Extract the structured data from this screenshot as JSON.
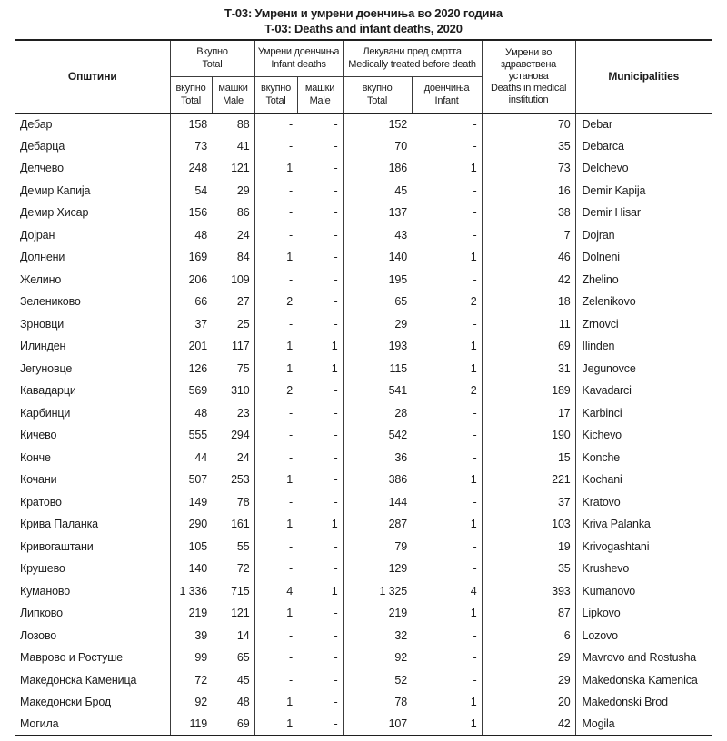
{
  "page": {
    "title_mk": "Т-03: Умрени и умрени доенчиња во 2020 година",
    "title_en": "T-03: Deaths and infant deaths, 2020"
  },
  "colors": {
    "text": "#1c1c1c",
    "rule_thin": "#3c3c3c",
    "rule_heavy": "#1f1f1f",
    "background": "#ffffff"
  },
  "table": {
    "header": {
      "municipalities_mk": "Општини",
      "municipalities_en": "Municipalities",
      "group_total_mk": "Вкупно",
      "group_total_en": "Total",
      "group_infant_mk": "Умрени доенчиња",
      "group_infant_en": "Infant deaths",
      "group_treated_mk": "Лекувани пред смртта",
      "group_treated_en": "Medically treated before death",
      "institution_lines": "Умрени во\nздравствена\nустанова\nDeaths in medical\ninstitution",
      "sub": [
        {
          "mk": "вкупно",
          "en": "Total"
        },
        {
          "mk": "машки",
          "en": "Male"
        },
        {
          "mk": "вкупно",
          "en": "Total"
        },
        {
          "mk": "машки",
          "en": "Male"
        },
        {
          "mk": "вкупно",
          "en": "Total"
        },
        {
          "mk": "доенчиња",
          "en": "Infant"
        }
      ]
    },
    "rows": [
      {
        "mk": "Дебар",
        "values": [
          "158",
          "88",
          "-",
          "-",
          "152",
          "-",
          "70"
        ],
        "en": "Debar"
      },
      {
        "mk": "Дебарца",
        "values": [
          "73",
          "41",
          "-",
          "-",
          "70",
          "-",
          "35"
        ],
        "en": "Debarca"
      },
      {
        "mk": "Делчево",
        "values": [
          "248",
          "121",
          "1",
          "-",
          "186",
          "1",
          "73"
        ],
        "en": "Delchevo"
      },
      {
        "mk": "Демир Капија",
        "values": [
          "54",
          "29",
          "-",
          "-",
          "45",
          "-",
          "16"
        ],
        "en": "Demir Kapija"
      },
      {
        "mk": "Демир Хисар",
        "values": [
          "156",
          "86",
          "-",
          "-",
          "137",
          "-",
          "38"
        ],
        "en": "Demir Hisar"
      },
      {
        "mk": "Дојран",
        "values": [
          "48",
          "24",
          "-",
          "-",
          "43",
          "-",
          "7"
        ],
        "en": "Dojran"
      },
      {
        "mk": "Долнени",
        "values": [
          "169",
          "84",
          "1",
          "-",
          "140",
          "1",
          "46"
        ],
        "en": "Dolneni"
      },
      {
        "mk": "Желино",
        "values": [
          "206",
          "109",
          "-",
          "-",
          "195",
          "-",
          "42"
        ],
        "en": "Zhelino"
      },
      {
        "mk": "Зелениково",
        "values": [
          "66",
          "27",
          "2",
          "-",
          "65",
          "2",
          "18"
        ],
        "en": "Zelenikovo"
      },
      {
        "mk": "Зрновци",
        "values": [
          "37",
          "25",
          "-",
          "-",
          "29",
          "-",
          "11"
        ],
        "en": "Zrnovci"
      },
      {
        "mk": "Илинден",
        "values": [
          "201",
          "117",
          "1",
          "1",
          "193",
          "1",
          "69"
        ],
        "en": "Ilinden"
      },
      {
        "mk": "Јегуновце",
        "values": [
          "126",
          "75",
          "1",
          "1",
          "115",
          "1",
          "31"
        ],
        "en": "Jegunovce"
      },
      {
        "mk": "Кавадарци",
        "values": [
          "569",
          "310",
          "2",
          "-",
          "541",
          "2",
          "189"
        ],
        "en": "Kavadarci"
      },
      {
        "mk": "Карбинци",
        "values": [
          "48",
          "23",
          "-",
          "-",
          "28",
          "-",
          "17"
        ],
        "en": "Karbinci"
      },
      {
        "mk": "Кичево",
        "values": [
          "555",
          "294",
          "-",
          "-",
          "542",
          "-",
          "190"
        ],
        "en": "Kichevo"
      },
      {
        "mk": "Конче",
        "values": [
          "44",
          "24",
          "-",
          "-",
          "36",
          "-",
          "15"
        ],
        "en": "Konche"
      },
      {
        "mk": "Кочани",
        "values": [
          "507",
          "253",
          "1",
          "-",
          "386",
          "1",
          "221"
        ],
        "en": "Kochani"
      },
      {
        "mk": "Кратово",
        "values": [
          "149",
          "78",
          "-",
          "-",
          "144",
          "-",
          "37"
        ],
        "en": "Kratovo"
      },
      {
        "mk": "Крива Паланка",
        "values": [
          "290",
          "161",
          "1",
          "1",
          "287",
          "1",
          "103"
        ],
        "en": "Kriva Palanka"
      },
      {
        "mk": "Кривогаштани",
        "values": [
          "105",
          "55",
          "-",
          "-",
          "79",
          "-",
          "19"
        ],
        "en": "Krivogashtani"
      },
      {
        "mk": "Крушево",
        "values": [
          "140",
          "72",
          "-",
          "-",
          "129",
          "-",
          "35"
        ],
        "en": "Krushevo"
      },
      {
        "mk": "Куманово",
        "values": [
          "1 336",
          "715",
          "4",
          "1",
          "1 325",
          "4",
          "393"
        ],
        "en": "Kumanovo"
      },
      {
        "mk": "Липково",
        "values": [
          "219",
          "121",
          "1",
          "-",
          "219",
          "1",
          "87"
        ],
        "en": "Lipkovo"
      },
      {
        "mk": "Лозово",
        "values": [
          "39",
          "14",
          "-",
          "-",
          "32",
          "-",
          "6"
        ],
        "en": "Lozovo"
      },
      {
        "mk": "Маврово и Ростуше",
        "values": [
          "99",
          "65",
          "-",
          "-",
          "92",
          "-",
          "29"
        ],
        "en": "Mavrovo and Rostusha"
      },
      {
        "mk": "Македонска Каменица",
        "values": [
          "72",
          "45",
          "-",
          "-",
          "52",
          "-",
          "29"
        ],
        "en": "Makedonska Kamenica"
      },
      {
        "mk": "Македонски Брод",
        "values": [
          "92",
          "48",
          "1",
          "-",
          "78",
          "1",
          "20"
        ],
        "en": "Makedonski Brod"
      },
      {
        "mk": "Могила",
        "values": [
          "119",
          "69",
          "1",
          "-",
          "107",
          "1",
          "42"
        ],
        "en": "Mogila"
      }
    ]
  }
}
